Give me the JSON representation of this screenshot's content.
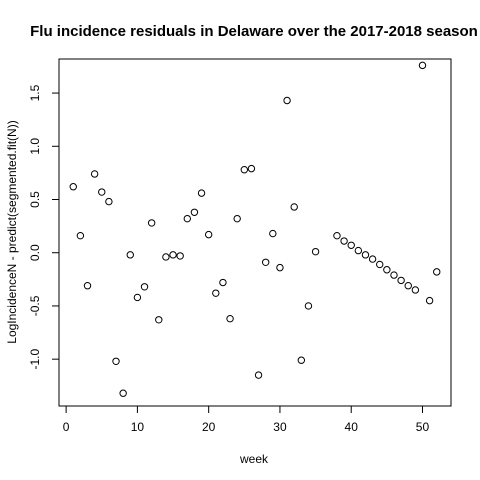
{
  "chart_data": {
    "type": "scatter",
    "title": "Flu incidence residuals in Delaware over the 2017-2018 season",
    "xlabel": "week",
    "ylabel": "LogIncidenceN - predict(segmented.fit(N))",
    "xlim": [
      -1,
      54
    ],
    "ylim": [
      -1.44,
      1.82
    ],
    "xticks": [
      0,
      10,
      20,
      30,
      40,
      50
    ],
    "yticks": [
      -1.0,
      -0.5,
      0.0,
      0.5,
      1.0,
      1.5
    ],
    "xtick_labels": [
      "0",
      "10",
      "20",
      "30",
      "40",
      "50"
    ],
    "ytick_labels": [
      "-1.0",
      "-0.5",
      "0.0",
      "0.5",
      "1.0",
      "1.5"
    ],
    "grid": false,
    "marker": "open-circle",
    "x": [
      1,
      2,
      3,
      4,
      5,
      6,
      7,
      8,
      9,
      10,
      11,
      12,
      13,
      14,
      15,
      16,
      17,
      18,
      19,
      20,
      21,
      22,
      23,
      24,
      25,
      26,
      27,
      28,
      29,
      30,
      31,
      32,
      33,
      34,
      35,
      38,
      39,
      40,
      41,
      42,
      43,
      44,
      45,
      46,
      47,
      48,
      49,
      50,
      51,
      52
    ],
    "y": [
      0.62,
      0.16,
      -0.31,
      0.74,
      0.57,
      0.48,
      -1.02,
      -1.32,
      -0.02,
      -0.42,
      -0.32,
      0.28,
      -0.63,
      -0.04,
      -0.02,
      -0.03,
      0.32,
      0.38,
      0.56,
      0.17,
      -0.38,
      -0.28,
      -0.62,
      0.32,
      0.78,
      0.79,
      -1.15,
      -0.09,
      0.18,
      -0.14,
      1.43,
      0.43,
      -1.01,
      -0.5,
      0.01,
      0.16,
      0.11,
      0.07,
      0.02,
      -0.02,
      -0.06,
      -0.11,
      -0.16,
      -0.21,
      -0.26,
      -0.31,
      -0.35,
      1.76,
      -0.45,
      -0.18
    ]
  }
}
